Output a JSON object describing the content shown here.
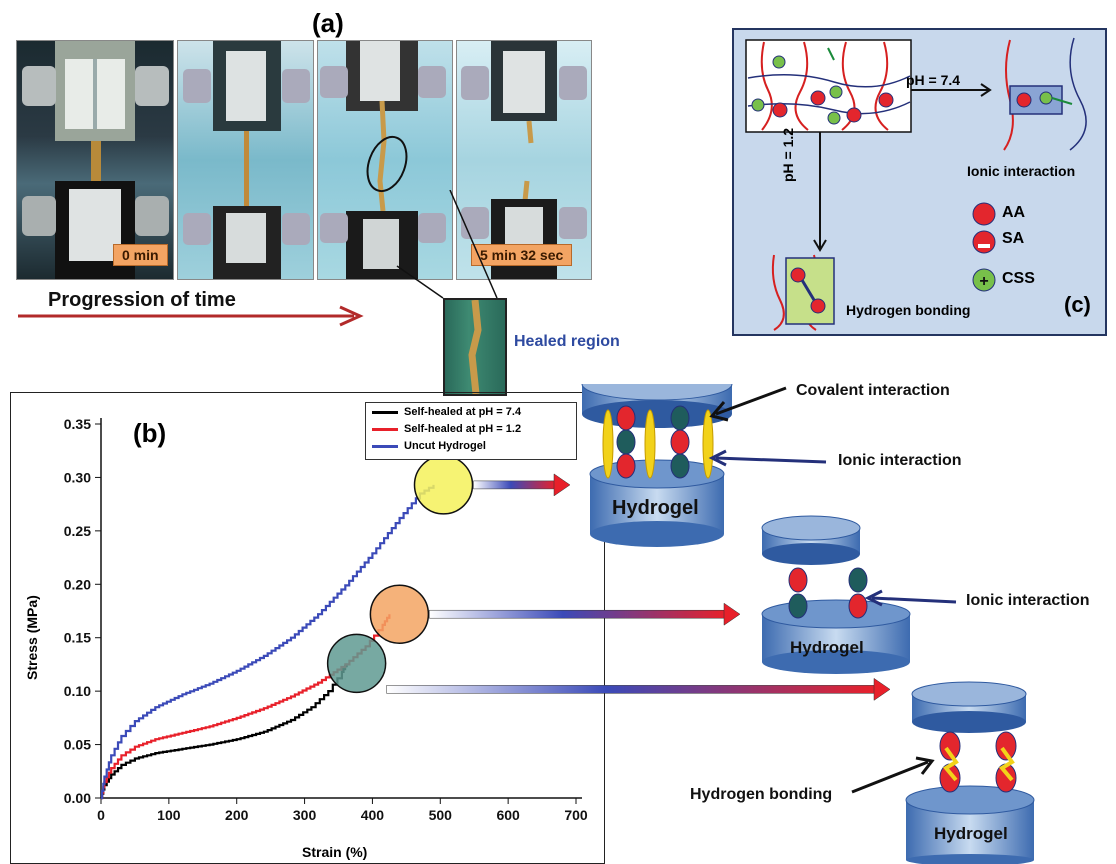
{
  "panel_a": {
    "label": "(a)",
    "badge_start": "0 min",
    "badge_end": "5 min 32 sec",
    "progression": "Progression of time",
    "healed": "Healed region"
  },
  "panel_b": {
    "label": "(b)"
  },
  "panel_c": {
    "label": "(c)",
    "ph74": "pH = 7.4",
    "ph12": "pH = 1.2",
    "ionic": "Ionic interaction",
    "hbond": "Hydrogen bonding",
    "legend": [
      {
        "label": "AA",
        "sign": ""
      },
      {
        "label": "SA",
        "sign": "−"
      },
      {
        "label": "CSS",
        "sign": "+"
      }
    ]
  },
  "schematic": {
    "hydrogel": "Hydrogel",
    "covalent": "Covalent interaction",
    "ionic": "Ionic interaction",
    "hbond": "Hydrogen bonding"
  },
  "colors": {
    "blue_series": "#3b4ab8",
    "red_series": "#e8202a",
    "black_series": "#000000",
    "healed_text": "#2e4aa0",
    "panel_c_bg": "#c8d8ec",
    "cylinder": "#6a93c9",
    "red_bead": "#e3262d",
    "green_bead": "#1f5c5c"
  },
  "chart_data": {
    "type": "line",
    "title": "",
    "xlabel": "Strain (%)",
    "ylabel": "Stress (MPa)",
    "xlim": [
      0,
      700
    ],
    "ylim": [
      0,
      0.35
    ],
    "xticks": [
      0,
      100,
      200,
      300,
      400,
      500,
      600,
      700
    ],
    "yticks": [
      0.0,
      0.05,
      0.1,
      0.15,
      0.2,
      0.25,
      0.3,
      0.35
    ],
    "legend_position": "top-right",
    "series": [
      {
        "name": "Self-healed at pH = 7.4",
        "color": "#000000",
        "x": [
          0,
          5,
          15,
          30,
          50,
          80,
          120,
          160,
          200,
          240,
          280,
          310,
          335,
          355,
          362
        ],
        "y": [
          0,
          0.012,
          0.022,
          0.031,
          0.037,
          0.042,
          0.046,
          0.05,
          0.055,
          0.062,
          0.073,
          0.085,
          0.1,
          0.118,
          0.126
        ]
      },
      {
        "name": "Self-healed at pH = 1.2",
        "color": "#e8202a",
        "x": [
          0,
          5,
          15,
          30,
          50,
          80,
          120,
          160,
          200,
          240,
          280,
          320,
          360,
          390,
          415,
          425
        ],
        "y": [
          0,
          0.015,
          0.028,
          0.04,
          0.048,
          0.055,
          0.061,
          0.067,
          0.075,
          0.084,
          0.095,
          0.108,
          0.125,
          0.142,
          0.162,
          0.172
        ]
      },
      {
        "name": "Uncut Hydrogel",
        "color": "#3b4ab8",
        "x": [
          0,
          5,
          15,
          30,
          50,
          80,
          120,
          160,
          200,
          240,
          280,
          320,
          360,
          400,
          440,
          470,
          490
        ],
        "y": [
          0,
          0.02,
          0.04,
          0.058,
          0.072,
          0.085,
          0.097,
          0.107,
          0.119,
          0.133,
          0.15,
          0.172,
          0.199,
          0.229,
          0.262,
          0.285,
          0.293
        ]
      }
    ]
  }
}
